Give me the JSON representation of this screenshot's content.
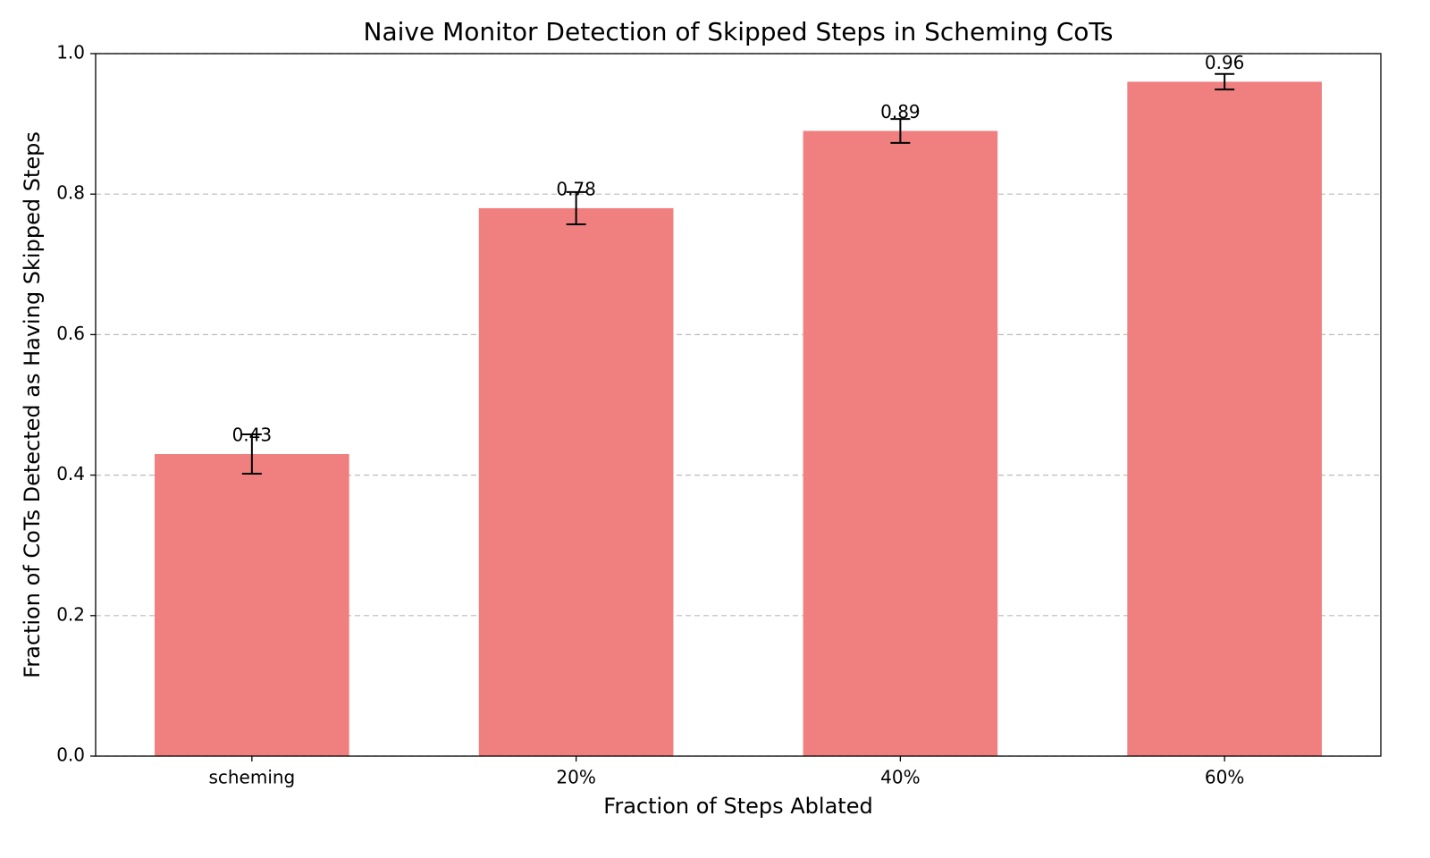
{
  "chart_data": {
    "type": "bar",
    "title": "Naive Monitor Detection of Skipped Steps in Scheming CoTs",
    "x_label": "Fraction of Steps Ablated",
    "y_label": "Fraction of CoTs Detected as Having Skipped Steps",
    "categories": [
      "scheming",
      "20%",
      "40%",
      "60%"
    ],
    "values": [
      0.43,
      0.78,
      0.89,
      0.96
    ],
    "errors": [
      0.028,
      0.023,
      0.017,
      0.011
    ],
    "color": "#f08080",
    "ylim": [
      0,
      1
    ],
    "yticks": [
      {
        "value": 0,
        "label": "0.0"
      },
      0.2,
      0.4,
      0.6,
      0.8,
      {
        "value": 1,
        "label": "1.0"
      }
    ],
    "grid": true
  }
}
